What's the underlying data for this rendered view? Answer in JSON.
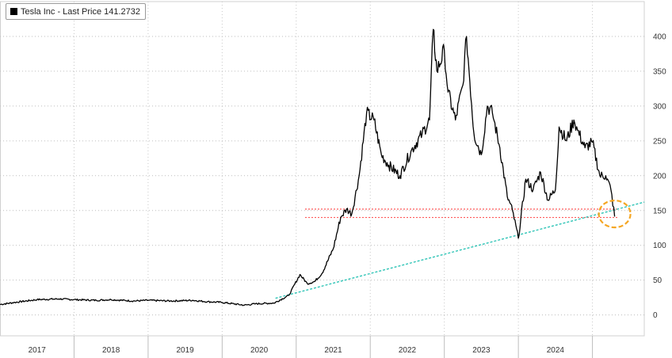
{
  "chart_data": {
    "type": "line",
    "title": "",
    "xlabel": "",
    "ylabel": "",
    "ylim": [
      -30,
      450
    ],
    "y_ticks": [
      0,
      50,
      100,
      150,
      200,
      250,
      300,
      350,
      400
    ],
    "x_tick_labels": [
      "2017",
      "2018",
      "2019",
      "2020",
      "2021",
      "2022",
      "2023",
      "2024"
    ],
    "grid": true,
    "legend_position": "top-left",
    "legend": "Tesla Inc - Last Price 141.2732",
    "colors": {
      "price": "#000000",
      "trendline": "#2ec4b6",
      "support": "#ff5a5a",
      "highlight": "#f5a623"
    },
    "series": [
      {
        "name": "Tesla Inc - Last Price",
        "x": [
          2016.0,
          2016.2,
          2016.5,
          2016.8,
          2017.0,
          2017.3,
          2017.5,
          2017.8,
          2018.0,
          2018.3,
          2018.6,
          2018.8,
          2019.0,
          2019.3,
          2019.45,
          2019.7,
          2019.9,
          2020.05,
          2020.15,
          2020.25,
          2020.35,
          2020.5,
          2020.6,
          2020.68,
          2020.75,
          2020.85,
          2020.95,
          2021.05,
          2021.15,
          2021.25,
          2021.4,
          2021.55,
          2021.7,
          2021.8,
          2021.85,
          2021.9,
          2022.0,
          2022.05,
          2022.15,
          2022.25,
          2022.3,
          2022.4,
          2022.5,
          2022.58,
          2022.65,
          2022.75,
          2022.85,
          2022.92,
          2023.0,
          2023.1,
          2023.2,
          2023.3,
          2023.4,
          2023.5,
          2023.55,
          2023.65,
          2023.75,
          2023.8,
          2023.9,
          2024.0,
          2024.1,
          2024.18,
          2024.25,
          2024.3
        ],
        "y": [
          15,
          18,
          22,
          23,
          22,
          21,
          22,
          20,
          21,
          20,
          21,
          19,
          18,
          14,
          16,
          17,
          28,
          58,
          45,
          48,
          60,
          95,
          140,
          152,
          145,
          200,
          290,
          280,
          230,
          215,
          200,
          235,
          260,
          280,
          410,
          350,
          380,
          320,
          280,
          330,
          400,
          260,
          230,
          300,
          290,
          240,
          170,
          150,
          110,
          195,
          180,
          205,
          165,
          180,
          270,
          250,
          280,
          265,
          240,
          248,
          200,
          200,
          180,
          141.2732
        ]
      }
    ],
    "annotations": {
      "trendline": {
        "x": [
          2019.72,
          2024.7
        ],
        "y": [
          24,
          162
        ]
      },
      "support_lines": [
        152,
        140
      ],
      "highlight_circle": {
        "x": 2024.3,
        "y": 145
      }
    }
  }
}
